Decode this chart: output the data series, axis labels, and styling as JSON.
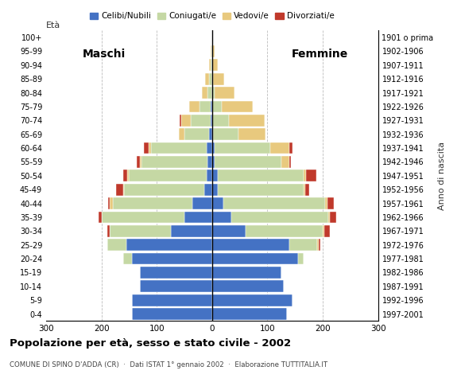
{
  "age_groups": [
    "0-4",
    "5-9",
    "10-14",
    "15-19",
    "20-24",
    "25-29",
    "30-34",
    "35-39",
    "40-44",
    "45-49",
    "50-54",
    "55-59",
    "60-64",
    "65-69",
    "70-74",
    "75-79",
    "80-84",
    "85-89",
    "90-94",
    "95-99",
    "100+"
  ],
  "birth_years": [
    "1997-2001",
    "1992-1996",
    "1987-1991",
    "1982-1986",
    "1977-1981",
    "1972-1976",
    "1967-1971",
    "1962-1966",
    "1957-1961",
    "1952-1956",
    "1947-1951",
    "1942-1946",
    "1937-1941",
    "1932-1936",
    "1927-1931",
    "1922-1926",
    "1917-1921",
    "1912-1916",
    "1907-1911",
    "1902-1906",
    "1901 o prima"
  ],
  "male": {
    "celibi": [
      145,
      145,
      130,
      130,
      145,
      155,
      75,
      50,
      35,
      14,
      10,
      8,
      10,
      5,
      3,
      2,
      0,
      0,
      0,
      0,
      0
    ],
    "coniugati": [
      0,
      0,
      0,
      0,
      15,
      35,
      110,
      150,
      145,
      145,
      140,
      120,
      100,
      45,
      35,
      20,
      8,
      5,
      2,
      1,
      0
    ],
    "vedovi": [
      0,
      0,
      0,
      0,
      0,
      0,
      0,
      0,
      5,
      2,
      3,
      3,
      5,
      10,
      18,
      20,
      10,
      8,
      3,
      2,
      0
    ],
    "divorziati": [
      0,
      0,
      0,
      0,
      0,
      0,
      5,
      5,
      3,
      12,
      8,
      5,
      8,
      0,
      3,
      0,
      0,
      0,
      0,
      0,
      0
    ]
  },
  "female": {
    "nubili": [
      135,
      145,
      130,
      125,
      155,
      140,
      60,
      35,
      20,
      10,
      10,
      5,
      5,
      2,
      0,
      0,
      0,
      0,
      0,
      0,
      0
    ],
    "coniugate": [
      0,
      0,
      0,
      0,
      10,
      50,
      140,
      175,
      185,
      155,
      155,
      120,
      100,
      45,
      30,
      18,
      5,
      2,
      1,
      0,
      0
    ],
    "vedove": [
      0,
      0,
      0,
      0,
      0,
      3,
      3,
      3,
      3,
      3,
      5,
      15,
      35,
      50,
      65,
      55,
      35,
      20,
      10,
      5,
      0
    ],
    "divorziate": [
      0,
      0,
      0,
      0,
      0,
      3,
      10,
      12,
      12,
      8,
      18,
      3,
      5,
      0,
      0,
      0,
      0,
      0,
      0,
      0,
      0
    ]
  },
  "colors": {
    "celibi": "#4472c4",
    "coniugati": "#c5d8a4",
    "vedovi": "#e8c97e",
    "divorziati": "#c0392b"
  },
  "xlim": 300,
  "title": "Popolazione per età, sesso e stato civile - 2002",
  "subtitle": "COMUNE DI SPINO D'ADDA (CR)  ·  Dati ISTAT 1° gennaio 2002  ·  Elaborazione TUTTITALIA.IT",
  "ylabel_left": "Età",
  "ylabel_right": "Anno di nascita",
  "legend_labels": [
    "Celibi/Nubili",
    "Coniugati/e",
    "Vedovi/e",
    "Divorziati/e"
  ],
  "maschi_label": "Maschi",
  "femmine_label": "Femmine",
  "bar_height": 0.85
}
